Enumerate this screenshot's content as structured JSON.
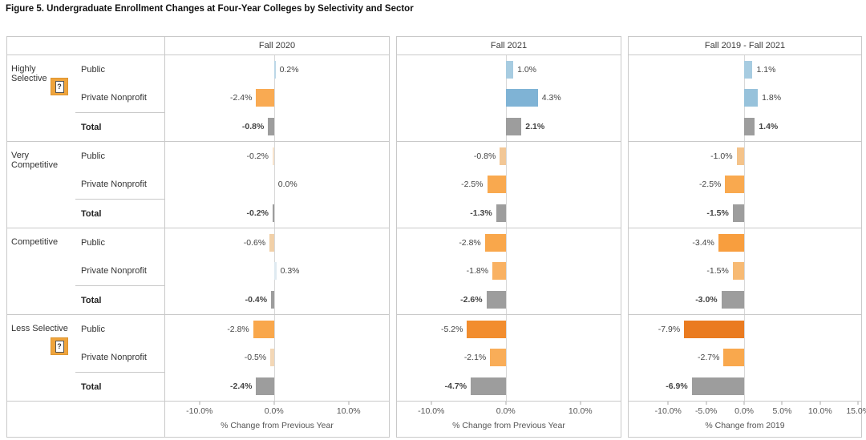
{
  "title": "Figure 5. Undergraduate Enrollment Changes at Four-Year Colleges by Selectivity and Sector",
  "help_icon_glyph": "?",
  "colors": {
    "border": "#c9c9c9",
    "zero_line": "#d8d8d8",
    "total_bar": "#9d9d9d",
    "positive_accent": "#7fb3d5",
    "negative_accent": "#ea7b20",
    "help_badge": "#efa43c",
    "text": "#444444"
  },
  "chart_data": {
    "type": "bar",
    "orientation": "horizontal",
    "panels": [
      {
        "title": "Fall 2020",
        "xlabel": "% Change from Previous Year",
        "xlim": [
          -14.6,
          15.4
        ],
        "ticks": [
          {
            "label": "-10.0%",
            "value": -10
          },
          {
            "label": "0.0%",
            "value": 0
          },
          {
            "label": "10.0%",
            "value": 10
          }
        ]
      },
      {
        "title": "Fall 2021",
        "xlabel": "% Change from Previous Year",
        "xlim": [
          -14.6,
          15.4
        ],
        "ticks": [
          {
            "label": "-10.0%",
            "value": -10
          },
          {
            "label": "0.0%",
            "value": 0
          },
          {
            "label": "10.0%",
            "value": 10
          }
        ]
      },
      {
        "title": "Fall 2019 - Fall 2021",
        "xlabel": "% Change from 2019",
        "xlim": [
          -15.2,
          15.4
        ],
        "ticks": [
          {
            "label": "-10.0%",
            "value": -10
          },
          {
            "label": "-5.0%",
            "value": -5
          },
          {
            "label": "0.0%",
            "value": 0
          },
          {
            "label": "5.0%",
            "value": 5
          },
          {
            "label": "10.0%",
            "value": 10
          },
          {
            "label": "15.0%",
            "value": 15
          }
        ]
      }
    ],
    "groups": [
      {
        "label": "Highly Selective",
        "has_help_icon": true,
        "rows": [
          {
            "sector": "Public",
            "is_total": false,
            "values": [
              0.2,
              1.0,
              1.1
            ],
            "labels": [
              "0.2%",
              "1.0%",
              "1.1%"
            ],
            "bar_colors": [
              "#bcd7e7",
              "#a7cce1",
              "#a7cce1"
            ]
          },
          {
            "sector": "Private Nonprofit",
            "is_total": false,
            "values": [
              -2.4,
              4.3,
              1.8
            ],
            "labels": [
              "-2.4%",
              "4.3%",
              "1.8%"
            ],
            "bar_colors": [
              "#f9aa52",
              "#7fb3d5",
              "#97c2db"
            ]
          },
          {
            "sector": "Total",
            "is_total": true,
            "values": [
              -0.8,
              2.1,
              1.4
            ],
            "labels": [
              "-0.8%",
              "2.1%",
              "1.4%"
            ],
            "bar_colors": [
              "#9d9d9d",
              "#9d9d9d",
              "#9d9d9d"
            ]
          }
        ]
      },
      {
        "label": "Very Competitive",
        "has_help_icon": false,
        "rows": [
          {
            "sector": "Public",
            "is_total": false,
            "values": [
              -0.2,
              -0.8,
              -1.0
            ],
            "labels": [
              "-0.2%",
              "-0.8%",
              "-1.0%"
            ],
            "bar_colors": [
              "#f7e4cd",
              "#f2c796",
              "#f4c38a"
            ]
          },
          {
            "sector": "Private Nonprofit",
            "is_total": false,
            "values": [
              0.0,
              -2.5,
              -2.5
            ],
            "labels": [
              "0.0%",
              "-2.5%",
              "-2.5%"
            ],
            "bar_colors": [
              null,
              "#f9a94f",
              "#f9a94f"
            ]
          },
          {
            "sector": "Total",
            "is_total": true,
            "values": [
              -0.2,
              -1.3,
              -1.5
            ],
            "labels": [
              "-0.2%",
              "-1.3%",
              "-1.5%"
            ],
            "bar_colors": [
              "#9d9d9d",
              "#9d9d9d",
              "#9d9d9d"
            ]
          }
        ]
      },
      {
        "label": "Competitive",
        "has_help_icon": false,
        "rows": [
          {
            "sector": "Public",
            "is_total": false,
            "values": [
              -0.6,
              -2.8,
              -3.4
            ],
            "labels": [
              "-0.6%",
              "-2.8%",
              "-3.4%"
            ],
            "bar_colors": [
              "#f1d0a8",
              "#f9a74b",
              "#f89e3e"
            ]
          },
          {
            "sector": "Private Nonprofit",
            "is_total": false,
            "values": [
              0.3,
              -1.8,
              -1.5
            ],
            "labels": [
              "0.3%",
              "-1.8%",
              "-1.5%"
            ],
            "bar_colors": [
              "#dfeaf1",
              "#f9b162",
              "#f7ba74"
            ]
          },
          {
            "sector": "Total",
            "is_total": true,
            "values": [
              -0.4,
              -2.6,
              -3.0
            ],
            "labels": [
              "-0.4%",
              "-2.6%",
              "-3.0%"
            ],
            "bar_colors": [
              "#9d9d9d",
              "#9d9d9d",
              "#9d9d9d"
            ]
          }
        ]
      },
      {
        "label": "Less Selective",
        "has_help_icon": true,
        "rows": [
          {
            "sector": "Public",
            "is_total": false,
            "values": [
              -2.8,
              -5.2,
              -7.9
            ],
            "labels": [
              "-2.8%",
              "-5.2%",
              "-7.9%"
            ],
            "bar_colors": [
              "#f9a74b",
              "#f28d2e",
              "#ea7b20"
            ]
          },
          {
            "sector": "Private Nonprofit",
            "is_total": false,
            "values": [
              -0.5,
              -2.1,
              -2.7
            ],
            "labels": [
              "-0.5%",
              "-2.1%",
              "-2.7%"
            ],
            "bar_colors": [
              "#f3d7b6",
              "#f9ad58",
              "#f9a84d"
            ]
          },
          {
            "sector": "Total",
            "is_total": true,
            "values": [
              -2.4,
              -4.7,
              -6.9
            ],
            "labels": [
              "-2.4%",
              "-4.7%",
              "-6.9%"
            ],
            "bar_colors": [
              "#9d9d9d",
              "#9d9d9d",
              "#9d9d9d"
            ]
          }
        ]
      }
    ]
  }
}
